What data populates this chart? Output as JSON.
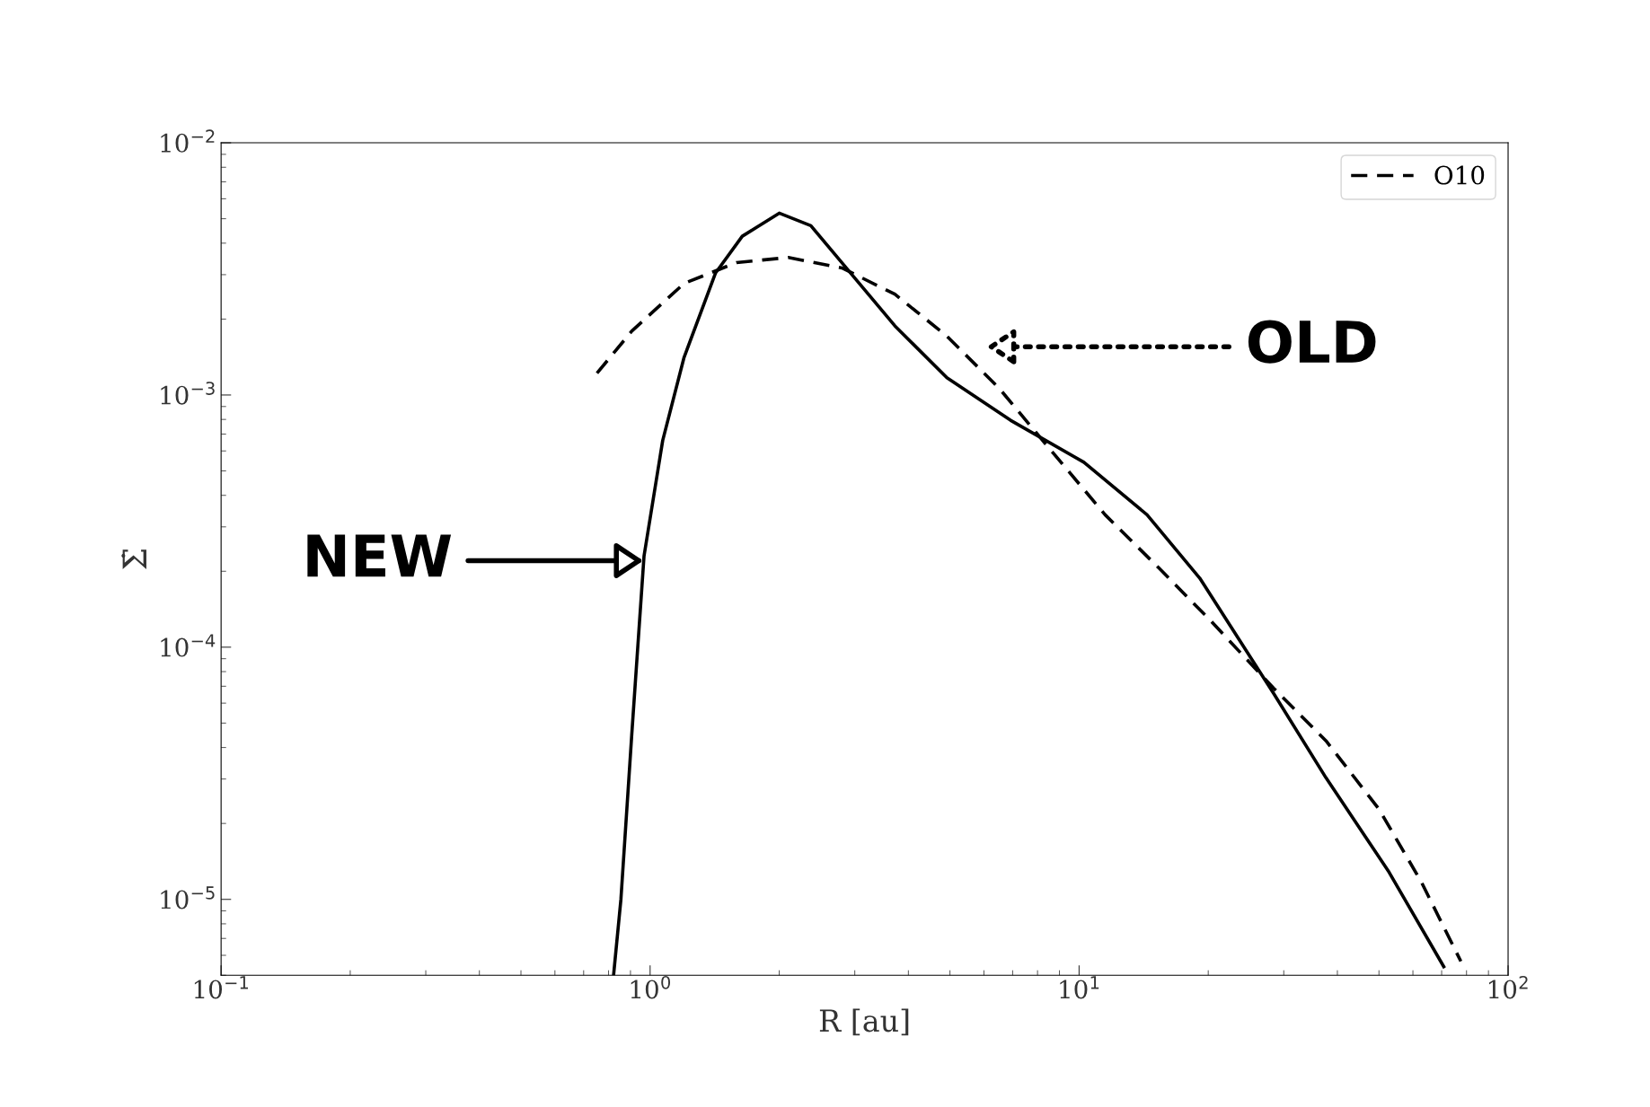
{
  "chart_data": {
    "type": "line",
    "xlabel": "R [au]",
    "ylabel": "Σ̇",
    "log": "xy",
    "xlim": [
      0.1,
      100
    ],
    "xticks": [
      {
        "value": 0.1,
        "label": "10$^{−1}$"
      },
      {
        "value": 1,
        "label": "10$^{0}$"
      },
      {
        "value": 10,
        "label": "10$^{1}$"
      },
      {
        "value": 100,
        "label": "10$^{2}$"
      }
    ],
    "ylim": [
      5e-06,
      0.01
    ],
    "yticks": [
      {
        "value": 1e-05,
        "label": "10$^{−5}$"
      },
      {
        "value": 0.0001,
        "label": "10$^{−4}$"
      },
      {
        "value": 0.001,
        "label": "10$^{−3}$"
      },
      {
        "value": 0.01,
        "label": "10$^{−2}$"
      }
    ],
    "series": [
      {
        "color": "#000000",
        "line_style": "solid",
        "x": [
          0.822,
          0.855,
          0.906,
          0.968,
          1.07,
          1.2,
          1.42,
          1.64,
          2.0,
          2.37,
          2.96,
          3.72,
          4.92,
          6.92,
          10.26,
          14.4,
          19.1,
          28.4,
          37.6,
          52.8,
          70.8
        ],
        "values": [
          5e-06,
          1e-05,
          4.47e-05,
          0.00023,
          0.00066,
          0.00141,
          0.00304,
          0.00426,
          0.00526,
          0.00469,
          0.00299,
          0.00188,
          0.00117,
          0.000794,
          0.000541,
          0.000335,
          0.000188,
          6.56e-05,
          3.04e-05,
          1.28e-05,
          5.41e-06
        ]
      },
      {
        "name": "O10",
        "color": "#000000",
        "line_style": "dashed",
        "x": [
          0.752,
          0.906,
          1.2,
          1.59,
          2.1,
          2.8,
          3.72,
          4.92,
          6.52,
          8.65,
          11.5,
          15.3,
          20.2,
          28.4,
          37.6,
          50.0,
          62.8,
          77.6
        ],
        "values": [
          0.00122,
          0.00179,
          0.00277,
          0.00335,
          0.00351,
          0.00319,
          0.00251,
          0.00171,
          0.00106,
          0.000596,
          0.000335,
          0.000207,
          0.000128,
          6.88e-05,
          4.26e-05,
          2.28e-05,
          1.17e-05,
          5.68e-06
        ]
      }
    ],
    "legend": "top right",
    "grid": false,
    "annotations": [
      "NEW",
      "OLD"
    ]
  }
}
